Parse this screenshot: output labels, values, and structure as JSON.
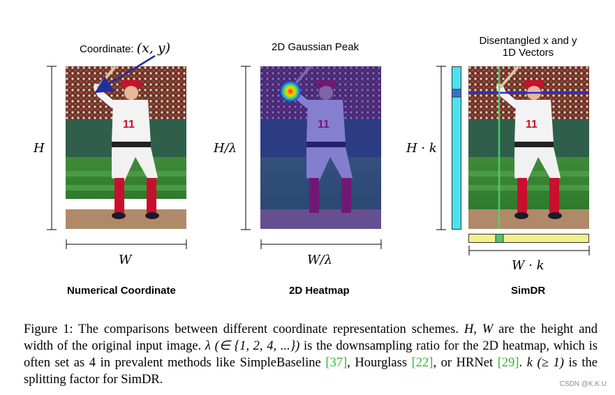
{
  "panels": {
    "numerical": {
      "top_label": "Coordinate: ",
      "top_math": "(x, y)",
      "height_label": "H",
      "width_label": "W",
      "title": "Numerical Coordinate"
    },
    "heatmap": {
      "top_label": "2D Gaussian Peak",
      "height_label": "H/λ",
      "width_label": "W/λ",
      "title": "2D Heatmap"
    },
    "simdr": {
      "top_label_line1": "Disentangled x and y",
      "top_label_line2": "1D Vectors",
      "height_label": "H · k",
      "width_label": "W · k",
      "title": "SimDR"
    }
  },
  "caption": {
    "p1": "Figure 1: The comparisons between different coordinate representation schemes. ",
    "p1_math": "H, W",
    "p2": " are the height and width of the original input image. ",
    "p2_math": "λ (∈ {1, 2, 4, ...})",
    "p3": " is the downsampling ratio for the 2D heatmap, which is often set as 4 in prevalent methods like SimpleBaseline ",
    "cite1": "[37]",
    "p4": ", Hourglass ",
    "cite2": "[22]",
    "p5": ", or HRNet ",
    "cite3": "[29]",
    "p6": ". ",
    "p6_math": "k (≥ 1)",
    "p7": " is the splitting factor for SimDR."
  },
  "watermark": "CSDN @K.K.U",
  "colors": {
    "arrow": "#1f2f9e",
    "vertical_bar": "#4de1ee",
    "vertical_bar_mark": "#3a6fd0",
    "horizontal_bar": "#f3f08c",
    "horizontal_bar_mark": "#4cc96a",
    "citation": "#2eb82e"
  }
}
